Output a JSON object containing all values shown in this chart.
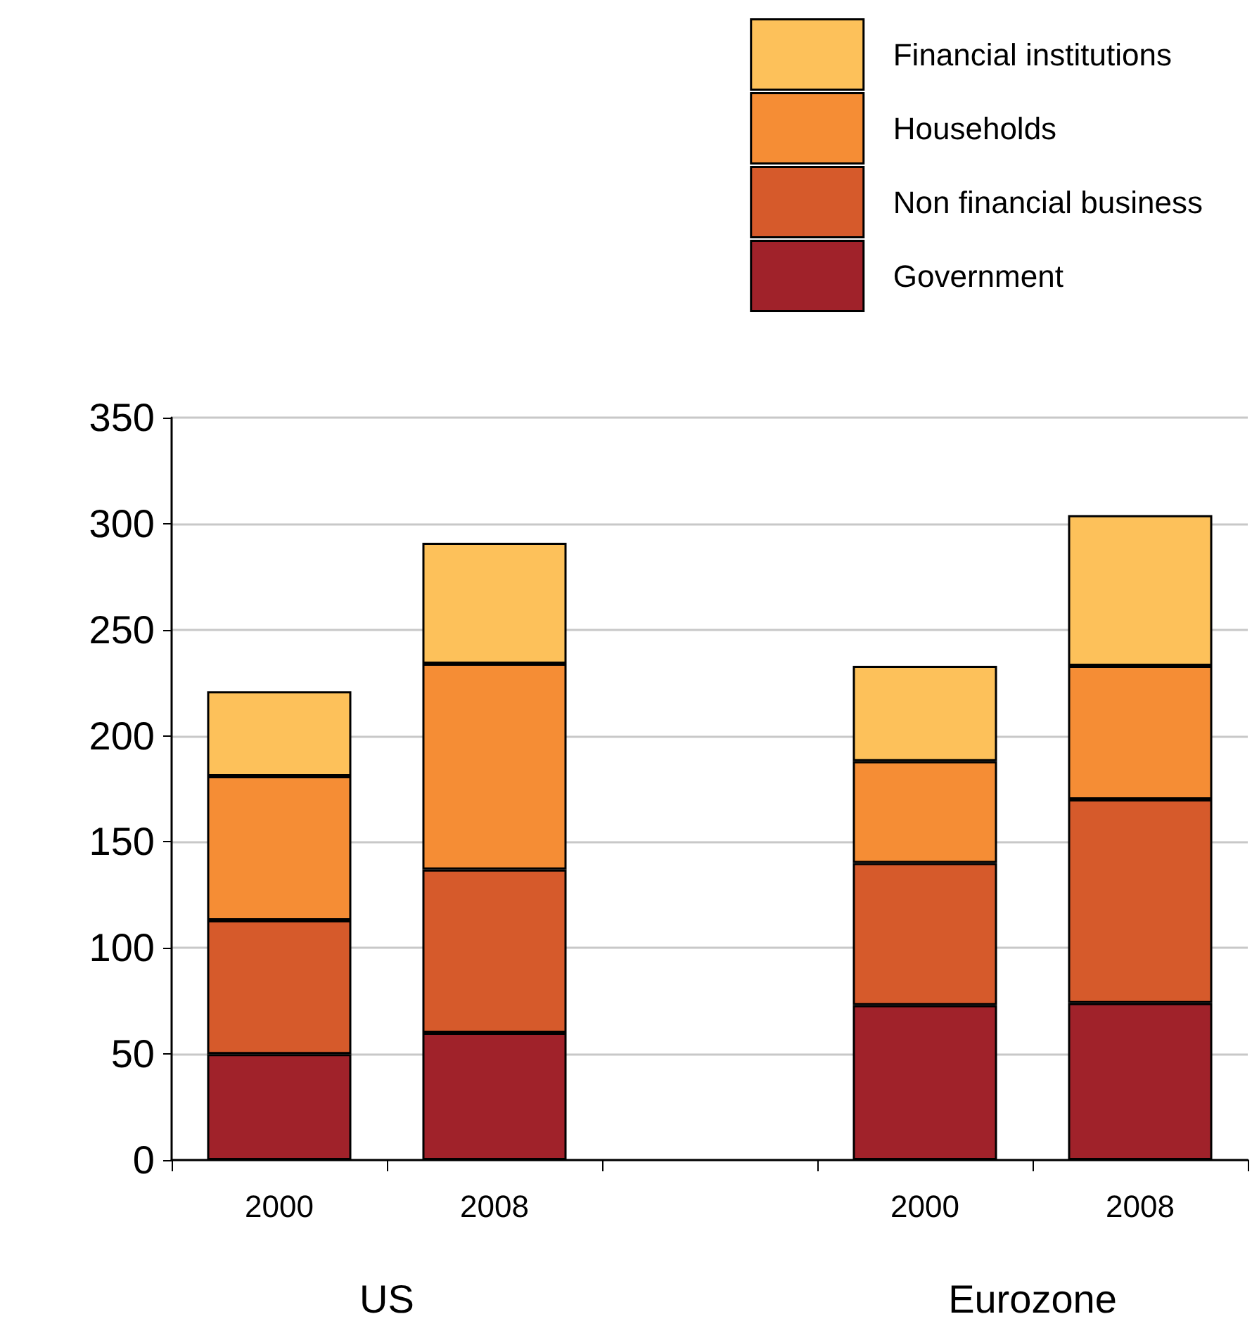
{
  "chart_data": {
    "type": "bar",
    "stacked": true,
    "categories": [
      "2000",
      "2008",
      null,
      "2000",
      "2008"
    ],
    "series": [
      {
        "name": "Government",
        "color": "#a0222a",
        "values": [
          50,
          60,
          null,
          73,
          74
        ]
      },
      {
        "name": "Non financial business",
        "color": "#d65a2b",
        "values": [
          63,
          77,
          null,
          67,
          96
        ]
      },
      {
        "name": "Households",
        "color": "#f58d35",
        "values": [
          68,
          97,
          null,
          48,
          63
        ]
      },
      {
        "name": "Financial institutions",
        "color": "#fdc15a",
        "values": [
          40,
          57,
          null,
          45,
          71
        ]
      }
    ],
    "ylim": [
      0,
      350
    ],
    "yticks": [
      0,
      50,
      100,
      150,
      200,
      250,
      300,
      350
    ],
    "grid": "y",
    "legend": "top right",
    "annotations": [
      "US",
      "Eurozone"
    ]
  }
}
